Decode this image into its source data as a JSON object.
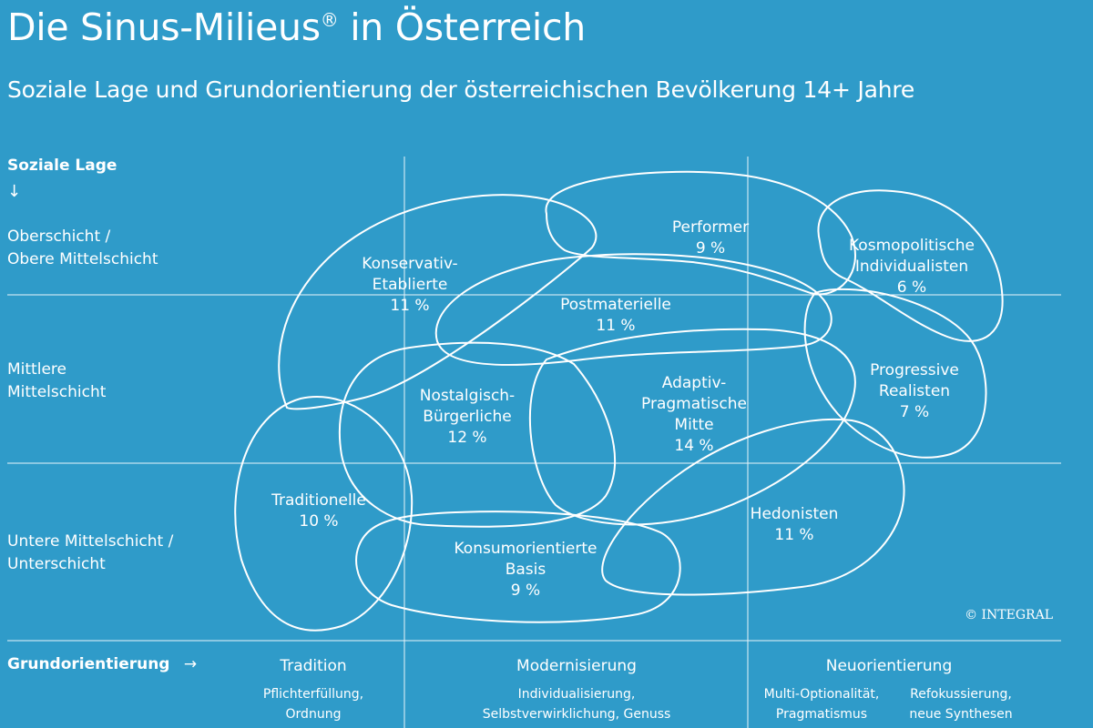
{
  "header": {
    "title": "Die Sinus-Milieus",
    "title_mark": "®",
    "title_suffix": "in Österreich",
    "subtitle": "Soziale Lage und Grundorientierung der österreichischen Bevölkerung 14+ Jahre"
  },
  "y_axis": {
    "heading": "Soziale Lage",
    "arrow": "↓",
    "levels": [
      {
        "line1": "Oberschicht /",
        "line2": "Obere Mittelschicht"
      },
      {
        "line1": "Mittlere",
        "line2": "Mittelschicht"
      },
      {
        "line1": "Untere Mittelschicht /",
        "line2": "Unterschicht"
      }
    ]
  },
  "x_axis": {
    "heading": "Grundorientierung",
    "arrow": "→",
    "columns": [
      {
        "title": "Tradition",
        "sub": [
          "Pflichterfüllung,",
          "Ordnung"
        ]
      },
      {
        "title": "Modernisierung",
        "sub": [
          "Individualisierung,",
          "Selbstverwirklichung, Genuss"
        ]
      },
      {
        "title": "Neuorientierung",
        "subs": [
          {
            "lines": [
              "Multi-Optionalität,",
              "Pragmatismus"
            ]
          },
          {
            "lines": [
              "Refokussierung,",
              "neue Synthesen"
            ]
          }
        ]
      }
    ]
  },
  "milieus": [
    {
      "name_lines": [
        "Konservativ-",
        "Etablierte"
      ],
      "share": "11 %"
    },
    {
      "name_lines": [
        "Performer"
      ],
      "share": "9 %"
    },
    {
      "name_lines": [
        "Kosmopolitische",
        "Individualisten"
      ],
      "share": "6 %"
    },
    {
      "name_lines": [
        "Postmaterielle"
      ],
      "share": "11 %"
    },
    {
      "name_lines": [
        "Nostalgisch-",
        "Bürgerliche"
      ],
      "share": "12 %"
    },
    {
      "name_lines": [
        "Adaptiv-",
        "Pragmatische",
        "Mitte"
      ],
      "share": "14 %"
    },
    {
      "name_lines": [
        "Progressive",
        "Realisten"
      ],
      "share": "7 %"
    },
    {
      "name_lines": [
        "Traditionelle"
      ],
      "share": "10 %"
    },
    {
      "name_lines": [
        "Konsumorientierte",
        "Basis"
      ],
      "share": "9 %"
    },
    {
      "name_lines": [
        "Hedonisten"
      ],
      "share": "11 %"
    }
  ],
  "copyright": "© INTEGRAL",
  "colors": {
    "background": "#2f9bc9",
    "foreground": "#ffffff"
  }
}
